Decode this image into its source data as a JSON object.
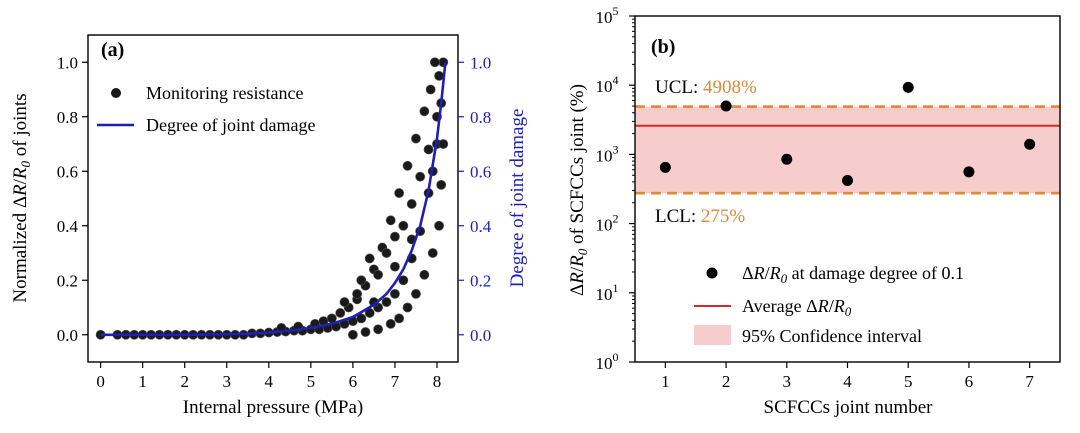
{
  "chart_data": [
    {
      "type": "scatter",
      "panel_label": "(a)",
      "xlabel": "Internal pressure (MPa)",
      "ylabel_left": "Normalized ΔR/R0 of joints",
      "ylabel_right": "Degree of joint damage",
      "xlim": [
        -0.3,
        8.5
      ],
      "ylim": [
        -0.1,
        1.1
      ],
      "x_ticks": [
        "0",
        "1",
        "2",
        "3",
        "4",
        "5",
        "6",
        "7",
        "8"
      ],
      "y_ticks_left": [
        "0.0",
        "0.2",
        "0.4",
        "0.6",
        "0.8",
        "1.0"
      ],
      "y_ticks_right": [
        "0.0",
        "0.2",
        "0.4",
        "0.6",
        "0.8",
        "1.0"
      ],
      "legend": {
        "placement": "top-left",
        "entries": [
          "Monitoring resistance",
          "Degree of joint damage"
        ]
      },
      "series": [
        {
          "name": "Monitoring resistance",
          "kind": "scatter",
          "color": "#1a1a1a",
          "points": [
            [
              0.0,
              0.0
            ],
            [
              0.4,
              0.0
            ],
            [
              0.6,
              0.0
            ],
            [
              0.8,
              0.0
            ],
            [
              1.0,
              0.0
            ],
            [
              1.2,
              0.0
            ],
            [
              1.4,
              0.0
            ],
            [
              1.6,
              0.0
            ],
            [
              1.8,
              0.0
            ],
            [
              2.0,
              0.0
            ],
            [
              2.2,
              0.0
            ],
            [
              2.4,
              0.0
            ],
            [
              2.6,
              0.0
            ],
            [
              2.8,
              0.0
            ],
            [
              3.0,
              0.0
            ],
            [
              3.2,
              0.0
            ],
            [
              3.4,
              0.0
            ],
            [
              3.6,
              0.005
            ],
            [
              3.8,
              0.005
            ],
            [
              4.0,
              0.008
            ],
            [
              4.2,
              0.01
            ],
            [
              4.4,
              0.012
            ],
            [
              4.6,
              0.015
            ],
            [
              4.8,
              0.015
            ],
            [
              5.0,
              0.02
            ],
            [
              5.2,
              0.02
            ],
            [
              5.4,
              0.025
            ],
            [
              5.6,
              0.03
            ],
            [
              5.8,
              0.04
            ],
            [
              6.0,
              0.05
            ],
            [
              6.2,
              0.06
            ],
            [
              6.4,
              0.08
            ],
            [
              6.6,
              0.1
            ],
            [
              6.8,
              0.12
            ],
            [
              7.0,
              0.15
            ],
            [
              7.2,
              0.2
            ],
            [
              7.4,
              0.28
            ],
            [
              7.6,
              0.38
            ],
            [
              7.8,
              0.52
            ],
            [
              8.0,
              0.7
            ],
            [
              8.1,
              0.85
            ],
            [
              8.15,
              1.0
            ],
            [
              4.3,
              0.025
            ],
            [
              4.7,
              0.03
            ],
            [
              5.1,
              0.04
            ],
            [
              5.3,
              0.05
            ],
            [
              5.5,
              0.06
            ],
            [
              5.7,
              0.08
            ],
            [
              5.9,
              0.1
            ],
            [
              6.1,
              0.13
            ],
            [
              6.3,
              0.18
            ],
            [
              6.5,
              0.24
            ],
            [
              6.7,
              0.32
            ],
            [
              6.9,
              0.42
            ],
            [
              7.1,
              0.52
            ],
            [
              7.3,
              0.62
            ],
            [
              7.5,
              0.72
            ],
            [
              7.7,
              0.82
            ],
            [
              7.85,
              0.9
            ],
            [
              7.95,
              1.0
            ],
            [
              6.0,
              0.0
            ],
            [
              6.3,
              0.01
            ],
            [
              6.6,
              0.02
            ],
            [
              6.9,
              0.04
            ],
            [
              7.1,
              0.06
            ],
            [
              7.3,
              0.1
            ],
            [
              7.5,
              0.15
            ],
            [
              7.7,
              0.22
            ],
            [
              7.9,
              0.3
            ],
            [
              8.05,
              0.4
            ],
            [
              8.1,
              0.55
            ],
            [
              8.15,
              0.7
            ],
            [
              6.2,
              0.2
            ],
            [
              6.4,
              0.28
            ],
            [
              6.6,
              0.22
            ],
            [
              6.8,
              0.3
            ],
            [
              7.0,
              0.36
            ],
            [
              7.2,
              0.4
            ],
            [
              7.4,
              0.48
            ],
            [
              7.6,
              0.58
            ],
            [
              7.8,
              0.68
            ],
            [
              8.0,
              0.8
            ],
            [
              5.8,
              0.12
            ],
            [
              6.1,
              0.15
            ],
            [
              6.5,
              0.12
            ],
            [
              7.0,
              0.25
            ],
            [
              7.4,
              0.35
            ],
            [
              7.9,
              0.6
            ],
            [
              8.05,
              0.95
            ]
          ]
        },
        {
          "name": "Degree of joint damage",
          "kind": "line",
          "color": "#1f1fb4",
          "points": [
            [
              0.0,
              0.0
            ],
            [
              1.0,
              0.0
            ],
            [
              2.0,
              0.0
            ],
            [
              3.0,
              0.002
            ],
            [
              3.5,
              0.004
            ],
            [
              4.0,
              0.008
            ],
            [
              4.5,
              0.015
            ],
            [
              5.0,
              0.025
            ],
            [
              5.5,
              0.04
            ],
            [
              6.0,
              0.065
            ],
            [
              6.5,
              0.11
            ],
            [
              6.8,
              0.15
            ],
            [
              7.0,
              0.19
            ],
            [
              7.2,
              0.24
            ],
            [
              7.4,
              0.31
            ],
            [
              7.6,
              0.4
            ],
            [
              7.8,
              0.53
            ],
            [
              8.0,
              0.72
            ],
            [
              8.1,
              0.85
            ],
            [
              8.2,
              1.0
            ]
          ]
        }
      ]
    },
    {
      "type": "scatter",
      "panel_label": "(b)",
      "xlabel": "SCFCCs joint number",
      "ylabel": "ΔR/R0 of SCFCCs joint (%)",
      "y_scale": "log",
      "xlim": [
        0.5,
        7.5
      ],
      "ylim": [
        1,
        100000
      ],
      "x_ticks": [
        "1",
        "2",
        "3",
        "4",
        "5",
        "6",
        "7"
      ],
      "y_ticks": [
        {
          "value": 1,
          "base": "10",
          "exp": "0"
        },
        {
          "value": 10,
          "base": "10",
          "exp": "1"
        },
        {
          "value": 100,
          "base": "10",
          "exp": "2"
        },
        {
          "value": 1000,
          "base": "10",
          "exp": "3"
        },
        {
          "value": 10000,
          "base": "10",
          "exp": "4"
        },
        {
          "value": 100000,
          "base": "10",
          "exp": "5"
        }
      ],
      "ucl": {
        "value": 4908,
        "prefix": "UCL: ",
        "text": "4908%"
      },
      "lcl": {
        "value": 275,
        "prefix": "LCL: ",
        "text": "275%"
      },
      "average": 2591,
      "annotation_color": "#d98b3a",
      "legend": {
        "placement": "bottom-right",
        "entries": [
          "ΔR/R0 at damage degree of 0.1",
          "Average ΔR/R0",
          "95% Confidence interval"
        ]
      },
      "series": [
        {
          "name": "ΔR/R0 at damage degree of 0.1",
          "x": [
            1,
            2,
            3,
            4,
            5,
            6,
            7
          ],
          "values": [
            650,
            5000,
            850,
            420,
            9300,
            560,
            1400
          ]
        }
      ]
    }
  ]
}
